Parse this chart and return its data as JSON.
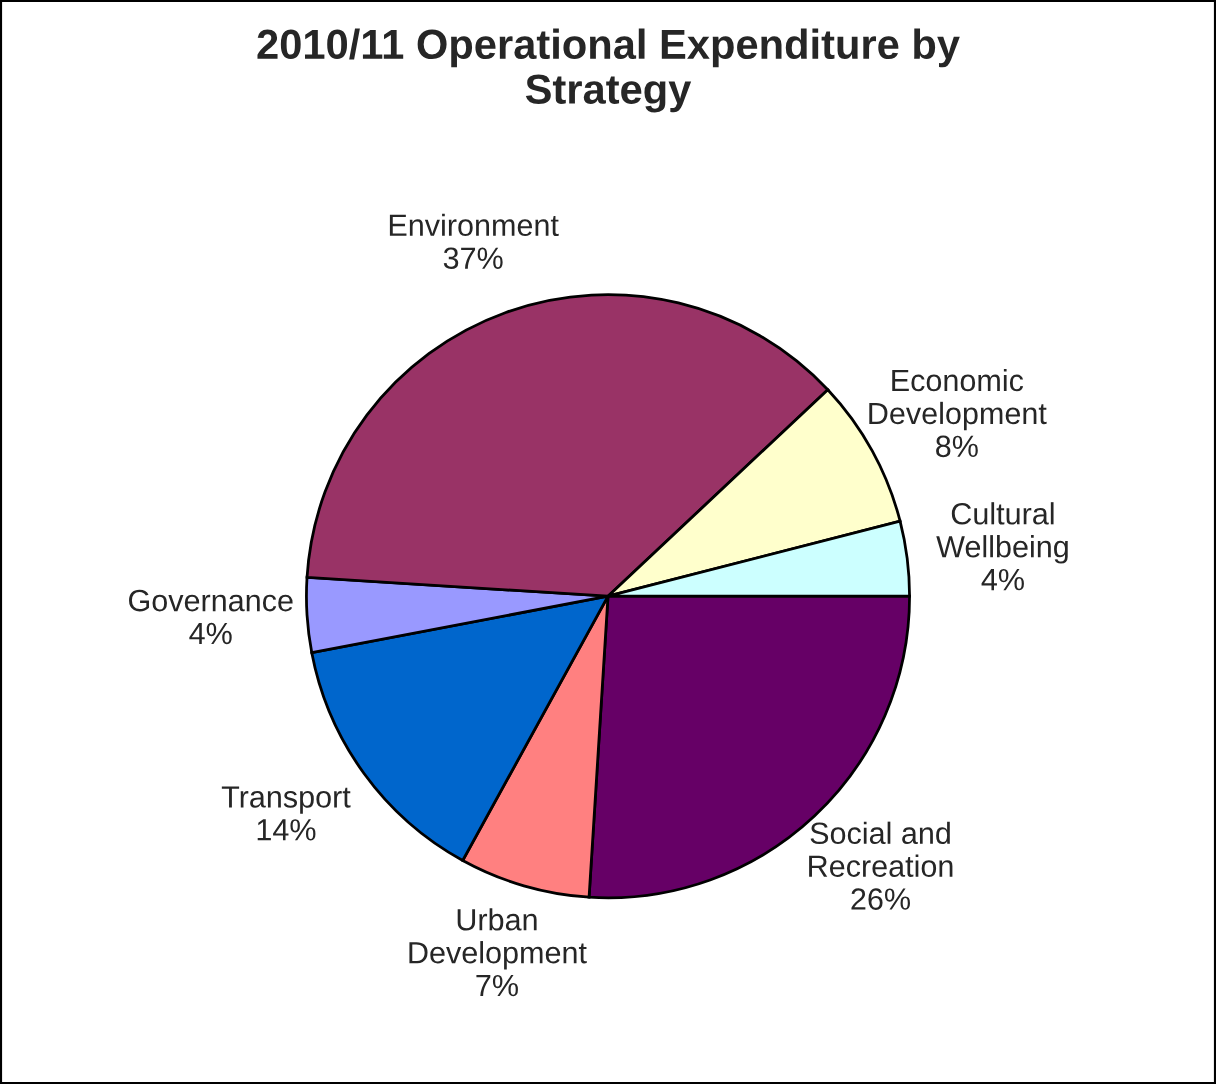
{
  "chart_data": {
    "type": "pie",
    "title": "2010/11 Operational Expenditure by Strategy",
    "categories": [
      "Social and Recreation",
      "Urban Development",
      "Transport",
      "Governance",
      "Environment",
      "Economic Development",
      "Cultural Wellbeing"
    ],
    "values": [
      26,
      7,
      14,
      4,
      37,
      8,
      4
    ],
    "colors": [
      "#660066",
      "#ff8080",
      "#0066cc",
      "#9999ff",
      "#993366",
      "#ffffcc",
      "#ccffff"
    ],
    "value_labels": [
      "26%",
      "7%",
      "14%",
      "4%",
      "37%",
      "8%",
      "4%"
    ],
    "legend": false
  }
}
